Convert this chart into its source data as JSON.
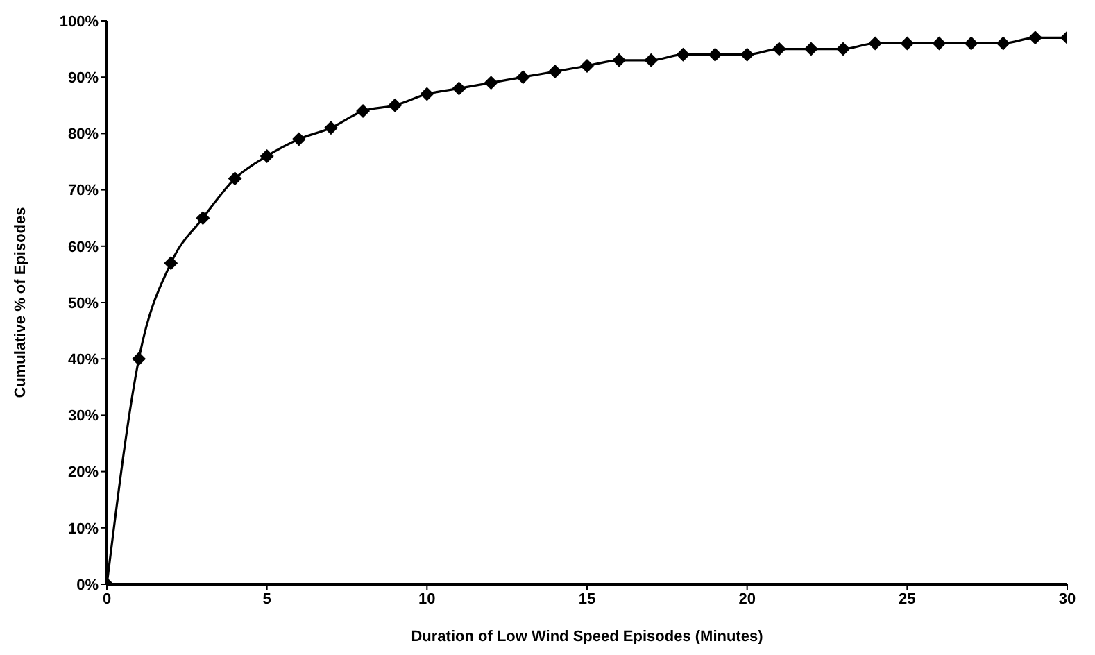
{
  "chart_data": {
    "type": "line",
    "xlabel": "Duration of Low Wind Speed Episodes (Minutes)",
    "ylabel": "Cumulative % of Episodes",
    "x": [
      0,
      1,
      2,
      3,
      4,
      5,
      6,
      7,
      8,
      9,
      10,
      11,
      12,
      13,
      14,
      15,
      16,
      17,
      18,
      19,
      20,
      21,
      22,
      23,
      24,
      25,
      26,
      27,
      28,
      29,
      30
    ],
    "series": [
      {
        "color": "#000000",
        "values": [
          0,
          40,
          57,
          65,
          72,
          76,
          79,
          81,
          84,
          85,
          87,
          88,
          89,
          90,
          91,
          92,
          93,
          93,
          94,
          94,
          94,
          95,
          95,
          95,
          96,
          96,
          96,
          96,
          96,
          97,
          97
        ]
      }
    ],
    "xlim": [
      0,
      30
    ],
    "xticks": [
      0,
      5,
      10,
      15,
      20,
      25,
      30
    ],
    "ylim": [
      0,
      100
    ],
    "yticks": [
      {
        "value": 0,
        "label": "0%"
      },
      {
        "value": 10,
        "label": "10%"
      },
      {
        "value": 20,
        "label": "20%"
      },
      {
        "value": 30,
        "label": "30%"
      },
      {
        "value": 40,
        "label": "40%"
      },
      {
        "value": 50,
        "label": "50%"
      },
      {
        "value": 60,
        "label": "60%"
      },
      {
        "value": 70,
        "label": "70%"
      },
      {
        "value": 80,
        "label": "80%"
      },
      {
        "value": 90,
        "label": "90%"
      },
      {
        "value": 100,
        "label": "100%"
      }
    ],
    "grid": false,
    "legend": false,
    "marker": "diamond",
    "line_style": "solid"
  }
}
